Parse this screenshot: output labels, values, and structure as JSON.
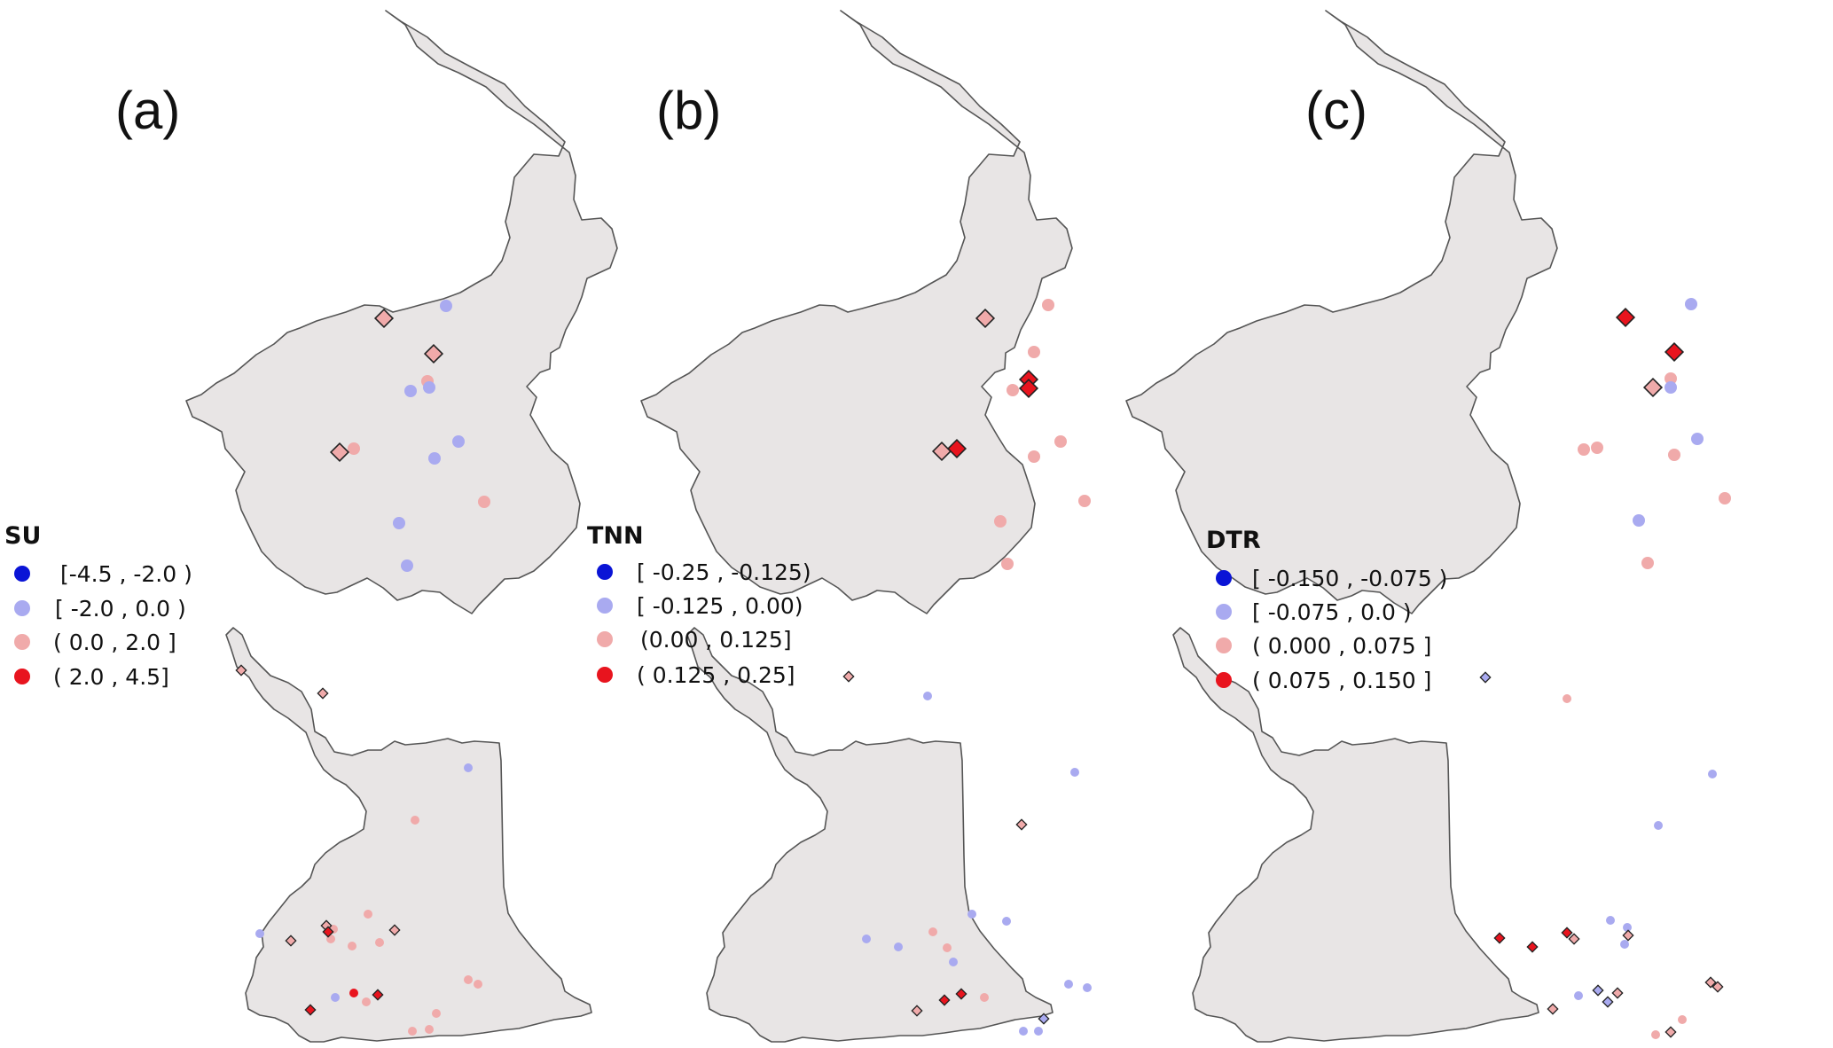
{
  "colors": {
    "class1": "#0a14d6",
    "class2": "#a9aaf0",
    "class3": "#f0aaaa",
    "class4": "#e8141e",
    "land": "#e8e5e5",
    "border": "#555555"
  },
  "panels": [
    {
      "label": "(a)",
      "legend": {
        "title": "SU",
        "items": [
          "[-4.5 , -2.0 )",
          "[ -2.0 , 0.0 )",
          "( 0.0 , 2.0 ]",
          "( 2.0 , 4.5]"
        ]
      }
    },
    {
      "label": "(b)",
      "legend": {
        "title": "TNN",
        "items": [
          "[ -0.25 , -0.125)",
          "[ -0.125 , 0.00)",
          "(0.00 , 0.125]",
          "( 0.125 , 0.25]"
        ]
      }
    },
    {
      "label": "(c)",
      "legend": {
        "title": "DTR",
        "items": [
          "[ -0.150 , -0.075 )",
          "[ -0.075 , 0.0 )",
          "( 0.000 , 0.075 ]",
          "( 0.075 , 0.150 ]"
        ]
      }
    }
  ]
}
